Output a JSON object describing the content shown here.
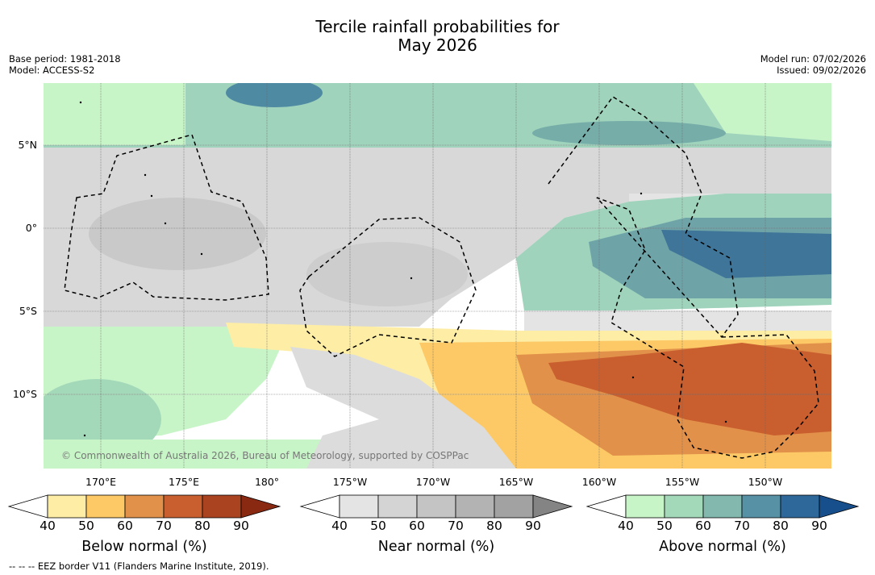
{
  "title_line1": "Tercile rainfall probabilities for",
  "title_line2": "May 2026",
  "base_period": "Base period: 1981-2018",
  "model": "Model: ACCESS-S2",
  "model_run": "Model run: 07/02/2026",
  "issued": "Issued: 09/02/2026",
  "copyright": "© Commonwealth of Australia 2026, Bureau of Meteorology, supported by COSPPac",
  "footer": "--  --  -- EEZ border V11 (Flanders Marine Institute, 2019).",
  "latitudes": [
    "5°N",
    "0°",
    "5°S",
    "10°S"
  ],
  "longitudes": [
    "170°E",
    "175°E",
    "180°",
    "175°W",
    "170°W",
    "165°W",
    "160°W",
    "155°W",
    "150°W"
  ],
  "colorbars": [
    {
      "label": "Below normal (%)",
      "ticks": [
        "40",
        "50",
        "60",
        "70",
        "80",
        "90"
      ],
      "colors": [
        "#ffffff",
        "#fdeda5",
        "#fdc966",
        "#e2914a",
        "#c95e2f",
        "#aa4420",
        "#8a2912"
      ]
    },
    {
      "label": "Near normal (%)",
      "ticks": [
        "40",
        "50",
        "60",
        "70",
        "80",
        "90"
      ],
      "colors": [
        "#ffffff",
        "#e4e4e4",
        "#d4d4d4",
        "#c4c4c4",
        "#b3b3b3",
        "#a2a2a2",
        "#848484"
      ]
    },
    {
      "label": "Above normal (%)",
      "ticks": [
        "40",
        "50",
        "60",
        "70",
        "80",
        "90"
      ],
      "colors": [
        "#ffffff",
        "#c8f5c8",
        "#a3d9b9",
        "#83b8ae",
        "#5791a6",
        "#2e6799",
        "#174f8c"
      ]
    }
  ]
}
